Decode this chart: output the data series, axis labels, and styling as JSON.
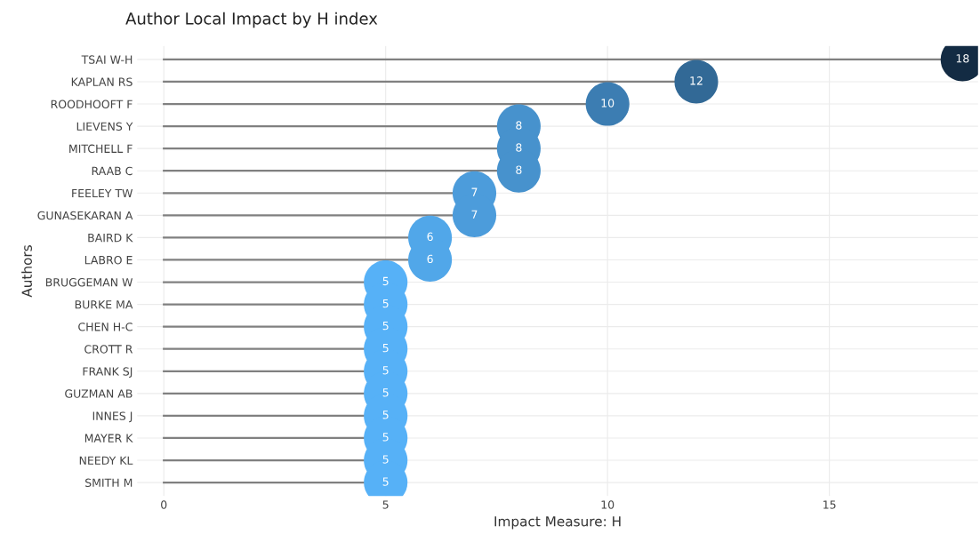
{
  "chart_data": {
    "type": "lollipop",
    "orientation": "horizontal",
    "title": "Author Local Impact by H index",
    "xlabel": "Impact Measure: H",
    "ylabel": "Authors",
    "categories": [
      "TSAI W-H",
      "KAPLAN RS",
      "ROODHOOFT F",
      "LIEVENS Y",
      "MITCHELL F",
      "RAAB C",
      "FEELEY TW",
      "GUNASEKARAN A",
      "BAIRD K",
      "LABRO E",
      "BRUGGEMAN W",
      "BURKE MA",
      "CHEN H-C",
      "CROTT R",
      "FRANK SJ",
      "GUZMAN AB",
      "INNES J",
      "MAYER K",
      "NEEDY KL",
      "SMITH M"
    ],
    "values": [
      18,
      12,
      10,
      8,
      8,
      8,
      7,
      7,
      6,
      6,
      5,
      5,
      5,
      5,
      5,
      5,
      5,
      5,
      5,
      5
    ],
    "colors": [
      "#132b43",
      "#326996",
      "#3c7db2",
      "#4792cd",
      "#4792cd",
      "#4792cd",
      "#4c9cdb",
      "#4c9cdb",
      "#51a7e9",
      "#51a7e9",
      "#56b1f7",
      "#56b1f7",
      "#56b1f7",
      "#56b1f7",
      "#56b1f7",
      "#56b1f7",
      "#56b1f7",
      "#56b1f7",
      "#56b1f7",
      "#56b1f7"
    ],
    "xlim": [
      -0.6,
      18.35
    ],
    "xticks": [
      0,
      5,
      10,
      15
    ],
    "grid": true,
    "marker": "circle",
    "data_labels": true
  }
}
